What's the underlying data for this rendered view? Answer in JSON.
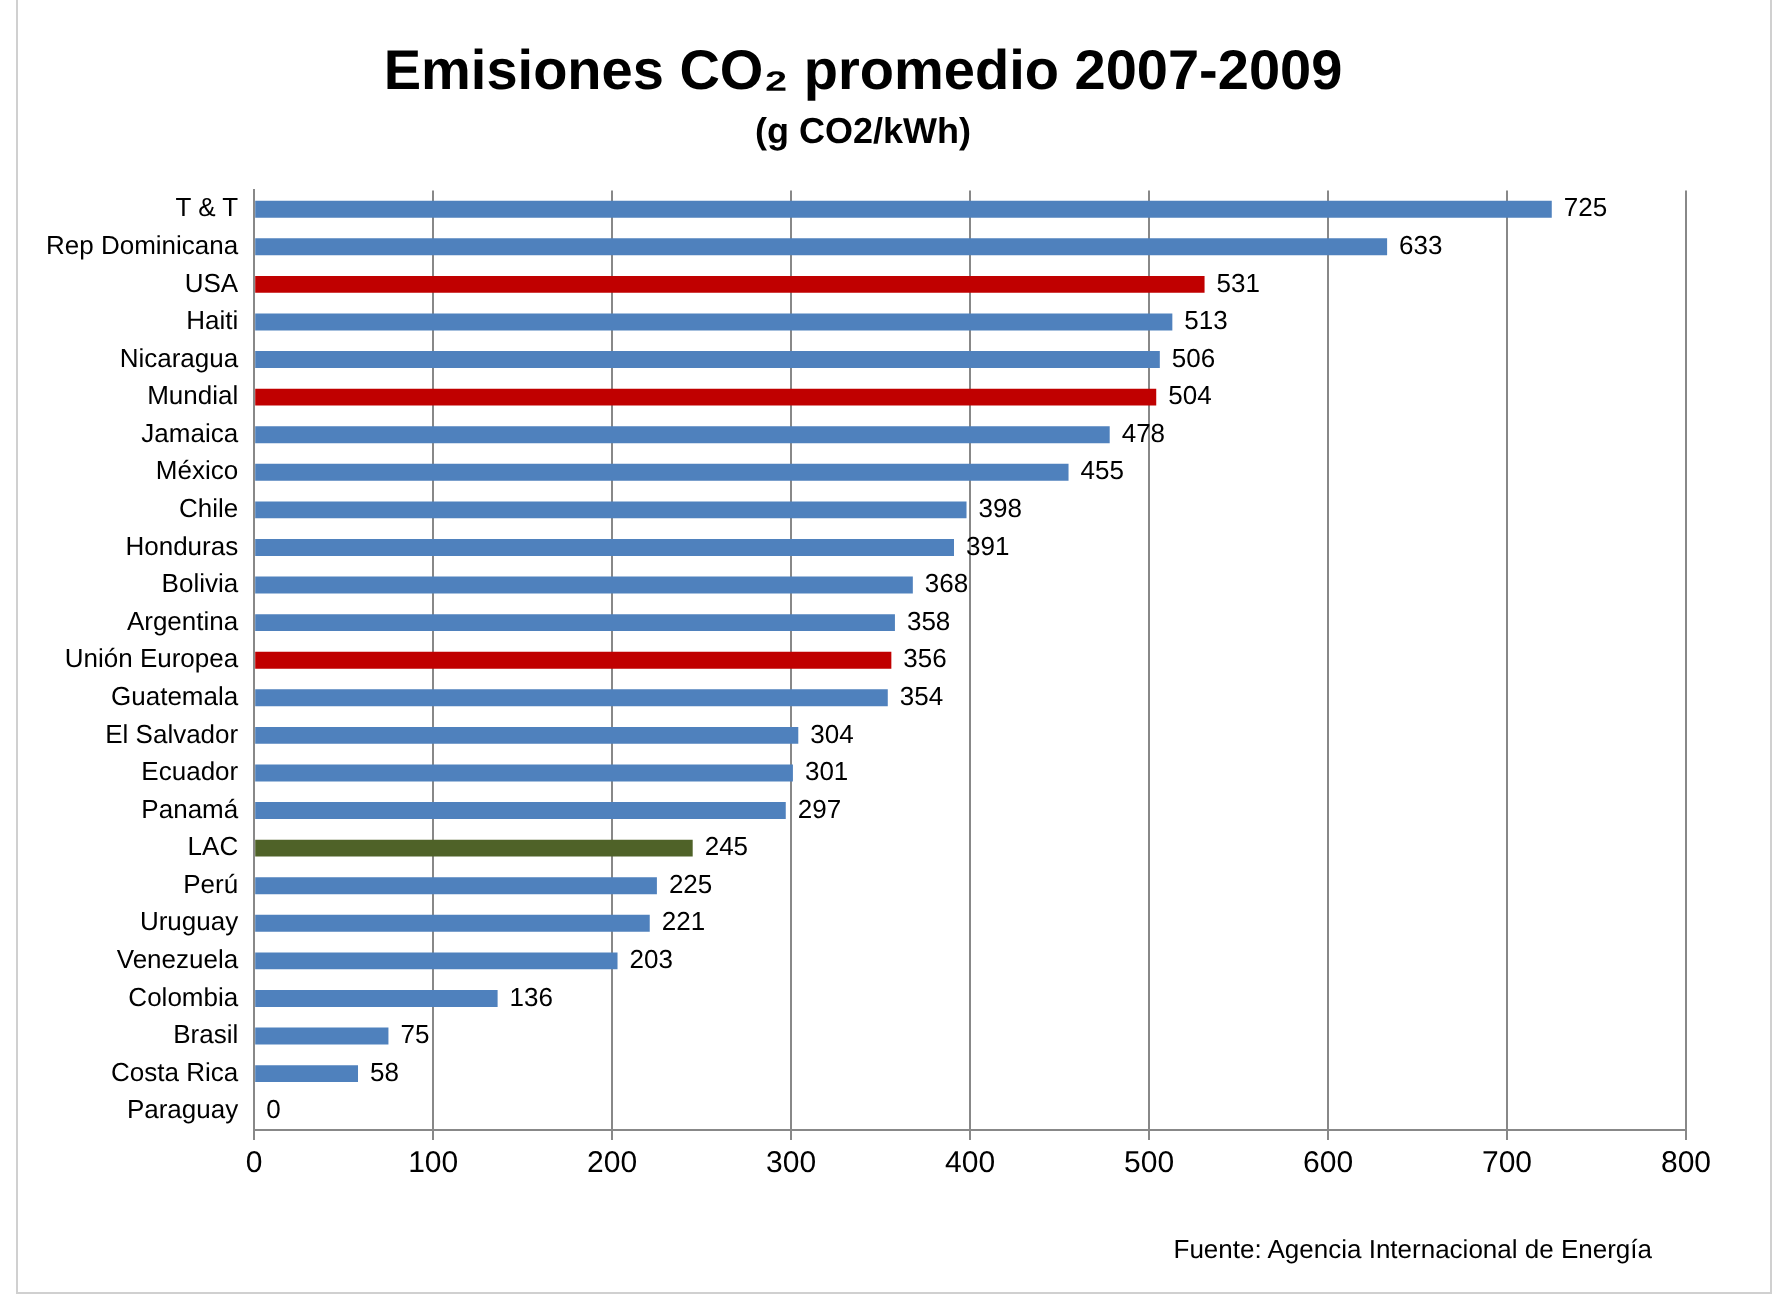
{
  "chart_data": {
    "type": "bar",
    "orientation": "horizontal",
    "title": "Emisiones CO₂ promedio 2007-2009",
    "subtitle": "(g CO2/kWh)",
    "categories": [
      "T & T",
      "Rep Dominicana",
      "USA",
      "Haiti",
      "Nicaragua",
      "Mundial",
      "Jamaica",
      "México",
      "Chile",
      "Honduras",
      "Bolivia",
      "Argentina",
      "Unión Europea",
      "Guatemala",
      "El Salvador",
      "Ecuador",
      "Panamá",
      "LAC",
      "Perú",
      "Uruguay",
      "Venezuela",
      "Colombia",
      "Brasil",
      "Costa Rica",
      "Paraguay"
    ],
    "values": [
      725,
      633,
      531,
      513,
      506,
      504,
      478,
      455,
      398,
      391,
      368,
      358,
      356,
      354,
      304,
      301,
      297,
      245,
      225,
      221,
      203,
      136,
      75,
      58,
      0
    ],
    "colors": [
      "#4f81bd",
      "#4f81bd",
      "#c00000",
      "#4f81bd",
      "#4f81bd",
      "#c00000",
      "#4f81bd",
      "#4f81bd",
      "#4f81bd",
      "#4f81bd",
      "#4f81bd",
      "#4f81bd",
      "#c00000",
      "#4f81bd",
      "#4f81bd",
      "#4f81bd",
      "#4f81bd",
      "#4f6228",
      "#4f81bd",
      "#4f81bd",
      "#4f81bd",
      "#4f81bd",
      "#4f81bd",
      "#4f81bd",
      "#4f81bd"
    ],
    "xlim": [
      0,
      800
    ],
    "xticks": [
      0,
      100,
      200,
      300,
      400,
      500,
      600,
      700,
      800
    ],
    "grid": "x",
    "data_labels": true,
    "legend": false,
    "annotations": [
      "Fuente: Agencia Internacional de Energía"
    ]
  }
}
